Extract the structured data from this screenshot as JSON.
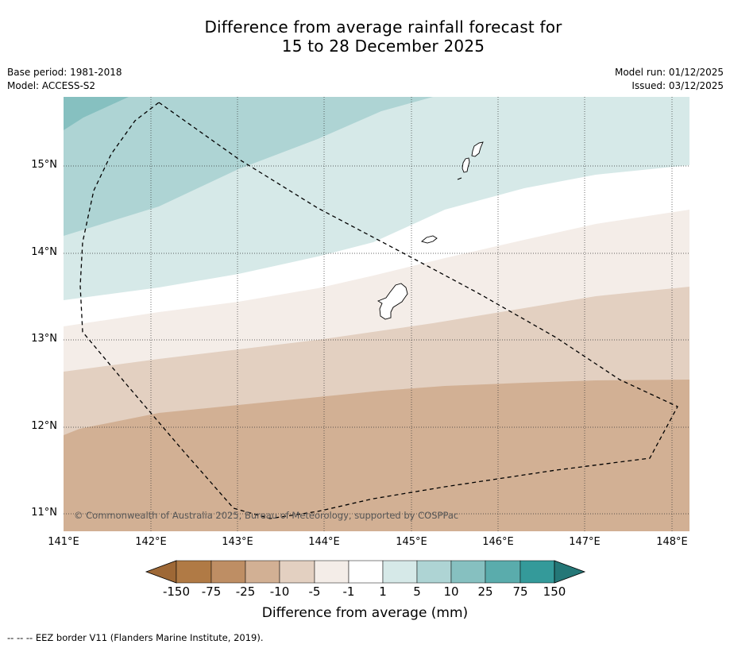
{
  "header": {
    "title_line1": "Difference from average rainfall forecast for",
    "title_line2": "15 to 28 December 2025",
    "base_period": "Base period: 1981-2018",
    "model": "Model: ACCESS-S2",
    "model_run": "Model run: 01/12/2025",
    "issued": "Issued: 03/12/2025"
  },
  "map": {
    "lat_labels": [
      "15°N",
      "14°N",
      "13°N",
      "12°N",
      "11°N"
    ],
    "lon_labels": [
      "141°E",
      "142°E",
      "143°E",
      "144°E",
      "145°E",
      "146°E",
      "147°E",
      "148°E"
    ],
    "copyright": "© Commonwealth of Australia 2025, Bureau of Meteorology, supported by COSPPac",
    "islands": [
      "Guam",
      "Rota",
      "Tinian",
      "Saipan"
    ],
    "bands": [
      {
        "range": "5 to 10",
        "color": "#aed4d4"
      },
      {
        "range": "10 to 25",
        "color": "#86c0c0"
      },
      {
        "range": "1 to 5",
        "color": "#d6e9e8"
      },
      {
        "range": "-1 to 1",
        "color": "#ffffff"
      },
      {
        "range": "-5 to -1",
        "color": "#f4ede8"
      },
      {
        "range": "-10 to -5",
        "color": "#e3d0c1"
      },
      {
        "range": "-25 to -10",
        "color": "#d2b094"
      }
    ]
  },
  "legend": {
    "labels": [
      "-150",
      "-75",
      "-25",
      "-10",
      "-5",
      "-1",
      "1",
      "5",
      "10",
      "25",
      "75",
      "150"
    ],
    "colors": [
      "#9e6836",
      "#b07a45",
      "#be8e64",
      "#d2b094",
      "#e3d0c1",
      "#f4ede8",
      "#ffffff",
      "#d6e9e8",
      "#aed4d4",
      "#86c0c0",
      "#5aacac",
      "#349a9a",
      "#247777"
    ],
    "title": "Difference from average (mm)"
  },
  "footer": {
    "eez_note": "--  --  -- EEZ border V11 (Flanders Marine Institute, 2019)."
  }
}
